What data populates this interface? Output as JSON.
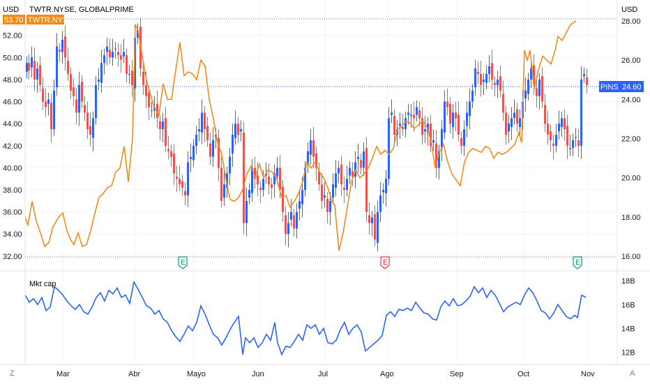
{
  "header": {
    "left_currency": "USD",
    "right_currency": "USD",
    "symbol_title": "TWTR.NYSE, GLOBALPRIME",
    "compare_tag": "TWTR.NYSE",
    "compare_value": "53.70"
  },
  "colors": {
    "up": "#2962ff",
    "down": "#ef5350",
    "compare": "#f28a1b",
    "mktcap": "#2962ff",
    "pins_tag": "#2962ff"
  },
  "price_tag": {
    "symbol": "PINS",
    "value": "24.60"
  },
  "events": [
    "E",
    "E",
    "E"
  ],
  "chart_data": [
    {
      "type": "candlestick",
      "title": "TWTR.NYSE, GLOBALPRIME",
      "left_axis": {
        "label": "USD",
        "ticks": [
          "32.00",
          "34.00",
          "36.00",
          "38.00",
          "40.00",
          "42.00",
          "44.00",
          "46.00",
          "48.00",
          "50.00",
          "52.00"
        ],
        "range": [
          31.8,
          53.5
        ]
      },
      "right_axis": {
        "label": "USD",
        "ticks": [
          "16.00",
          "18.00",
          "20.00",
          "22.00",
          "24.00",
          "26.00",
          "28.00"
        ],
        "range": [
          15.9,
          28.1
        ]
      },
      "x_ticks": [
        "Mar",
        "Abr",
        "Mayo",
        "Jun",
        "Jul",
        "Ago",
        "Sep",
        "Oct",
        "Nov"
      ],
      "legend": [
        "TWTR.NYSE",
        "PINS"
      ]
    },
    {
      "type": "line",
      "title": "Mkt cap",
      "y_ticks": [
        "12B",
        "14B",
        "16B",
        "18B"
      ],
      "range": [
        11.2,
        18.6
      ],
      "series": [
        {
          "name": "Mkt cap"
        }
      ]
    }
  ],
  "footer": {
    "left_button": "Z",
    "right_button": "A"
  }
}
